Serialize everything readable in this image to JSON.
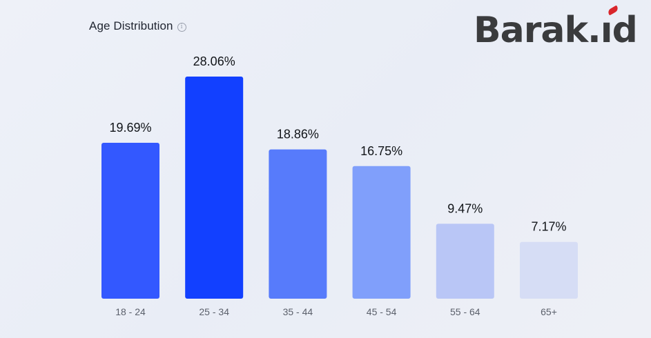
{
  "header": {
    "title": "Age Distribution",
    "info_icon": "info-icon"
  },
  "brand": {
    "name": "Barak.id",
    "accent_color": "#d9262b",
    "text_color": "#3a3b3d"
  },
  "chart_data": {
    "type": "bar",
    "title": "Age Distribution",
    "categories": [
      "18 - 24",
      "25 - 34",
      "35 - 44",
      "45 - 54",
      "55 - 64",
      "65+"
    ],
    "values": [
      19.69,
      28.06,
      18.86,
      16.75,
      9.47,
      7.17
    ],
    "data_labels": [
      "19.69%",
      "28.06%",
      "18.86%",
      "16.75%",
      "9.47%",
      "7.17%"
    ],
    "value_unit": "%",
    "bar_colors": [
      "#3358ff",
      "#1240ff",
      "#577bfb",
      "#809ffb",
      "#b9c6f6",
      "#d6ddf5"
    ],
    "ylim": [
      0,
      28.06
    ],
    "grid": false,
    "legend": "none"
  }
}
